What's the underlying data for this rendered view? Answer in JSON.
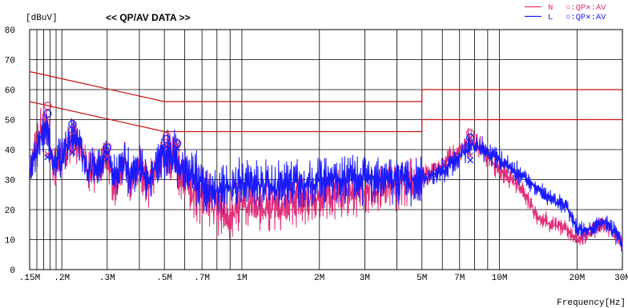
{
  "chart_data": {
    "type": "line",
    "title": "<< QP/AV DATA >>",
    "ylabel": "[dBuV]",
    "xlabel": "Frequency[Hz]",
    "x_scale": "log",
    "xlim_mhz": [
      0.15,
      30
    ],
    "ylim": [
      0,
      80
    ],
    "y_ticks": [
      0,
      10,
      20,
      30,
      40,
      50,
      60,
      70,
      80
    ],
    "x_ticks": [
      {
        "label": ".15M",
        "mhz": 0.15
      },
      {
        "label": ".2M",
        "mhz": 0.2
      },
      {
        "label": ".3M",
        "mhz": 0.3
      },
      {
        "label": ".5M",
        "mhz": 0.5
      },
      {
        "label": ".7M",
        "mhz": 0.7
      },
      {
        "label": "1M",
        "mhz": 1
      },
      {
        "label": "2M",
        "mhz": 2
      },
      {
        "label": "3M",
        "mhz": 3
      },
      {
        "label": "5M",
        "mhz": 5
      },
      {
        "label": "7M",
        "mhz": 7
      },
      {
        "label": "10M",
        "mhz": 10
      },
      {
        "label": "20M",
        "mhz": 20
      },
      {
        "label": "30M",
        "mhz": 30
      }
    ],
    "grid": true,
    "legend": {
      "placement": "top-right",
      "rows": [
        {
          "line": "N",
          "markers": "○:QP✕:AV",
          "color": "#e0307a"
        },
        {
          "line": "L",
          "markers": "○:QP✕:AV",
          "color": "#1a1aff"
        }
      ]
    },
    "limit_lines": [
      {
        "name": "QP limit",
        "color": "#cc1010",
        "points": [
          [
            0.15,
            66
          ],
          [
            0.5,
            56
          ],
          [
            5,
            56
          ],
          [
            5,
            60
          ],
          [
            30,
            60
          ]
        ]
      },
      {
        "name": "AV limit",
        "color": "#cc1010",
        "points": [
          [
            0.15,
            56
          ],
          [
            0.5,
            46
          ],
          [
            5,
            46
          ],
          [
            5,
            50
          ],
          [
            30,
            50
          ]
        ]
      }
    ],
    "series": [
      {
        "key": "N",
        "color": "#e0307a",
        "envelope": [
          [
            0.15,
            37
          ],
          [
            0.165,
            49
          ],
          [
            0.175,
            52
          ],
          [
            0.185,
            35
          ],
          [
            0.2,
            39
          ],
          [
            0.22,
            46
          ],
          [
            0.235,
            44
          ],
          [
            0.25,
            34
          ],
          [
            0.28,
            36
          ],
          [
            0.3,
            41
          ],
          [
            0.32,
            30
          ],
          [
            0.35,
            38
          ],
          [
            0.37,
            31
          ],
          [
            0.4,
            37
          ],
          [
            0.43,
            30
          ],
          [
            0.47,
            36
          ],
          [
            0.5,
            42
          ],
          [
            0.55,
            38
          ],
          [
            0.6,
            32
          ],
          [
            0.7,
            27
          ],
          [
            0.8,
            24
          ],
          [
            0.9,
            22
          ],
          [
            1,
            25
          ],
          [
            1.2,
            23
          ],
          [
            1.5,
            25
          ],
          [
            2,
            27
          ],
          [
            2.5,
            28
          ],
          [
            3,
            29
          ],
          [
            4,
            31
          ],
          [
            5,
            32
          ],
          [
            6,
            36
          ],
          [
            7,
            41
          ],
          [
            7.7,
            45
          ],
          [
            8.5,
            41
          ],
          [
            10,
            35
          ],
          [
            12,
            29
          ],
          [
            14,
            19
          ],
          [
            16,
            16
          ],
          [
            18,
            15
          ],
          [
            20,
            11
          ],
          [
            22,
            13
          ],
          [
            25,
            16
          ],
          [
            28,
            13
          ],
          [
            30,
            10
          ]
        ],
        "qp_markers": [
          [
            0.176,
            54.6
          ],
          [
            0.22,
            46.5
          ],
          [
            0.3,
            41.0
          ],
          [
            0.51,
            44.5
          ],
          [
            0.56,
            42.2
          ],
          [
            7.7,
            45.5
          ]
        ],
        "av_markers": [
          [
            0.176,
            38.5
          ],
          [
            0.22,
            39.6
          ],
          [
            0.3,
            37.6
          ],
          [
            0.51,
            42.0
          ],
          [
            0.56,
            41.5
          ],
          [
            7.7,
            38.0
          ]
        ]
      },
      {
        "key": "L",
        "color": "#1a1aff",
        "envelope": [
          [
            0.15,
            36
          ],
          [
            0.165,
            45
          ],
          [
            0.175,
            50
          ],
          [
            0.185,
            37
          ],
          [
            0.2,
            40
          ],
          [
            0.22,
            47
          ],
          [
            0.235,
            46
          ],
          [
            0.25,
            36
          ],
          [
            0.28,
            37
          ],
          [
            0.3,
            42
          ],
          [
            0.32,
            33
          ],
          [
            0.35,
            40
          ],
          [
            0.37,
            33
          ],
          [
            0.4,
            38
          ],
          [
            0.43,
            32
          ],
          [
            0.47,
            37
          ],
          [
            0.5,
            43
          ],
          [
            0.55,
            40
          ],
          [
            0.6,
            36
          ],
          [
            0.7,
            31
          ],
          [
            0.8,
            30
          ],
          [
            0.9,
            30
          ],
          [
            1,
            31
          ],
          [
            1.2,
            31
          ],
          [
            1.5,
            31
          ],
          [
            2,
            32
          ],
          [
            2.5,
            33
          ],
          [
            3,
            33
          ],
          [
            4,
            33
          ],
          [
            5,
            32
          ],
          [
            6,
            34
          ],
          [
            7,
            39
          ],
          [
            7.7,
            43
          ],
          [
            8.5,
            42
          ],
          [
            10,
            38
          ],
          [
            12,
            33
          ],
          [
            14,
            28
          ],
          [
            16,
            24
          ],
          [
            18,
            23
          ],
          [
            20,
            15
          ],
          [
            22,
            14
          ],
          [
            25,
            17
          ],
          [
            28,
            14
          ],
          [
            30,
            9
          ]
        ],
        "qp_markers": [
          [
            0.176,
            52.0
          ],
          [
            0.22,
            48.5
          ],
          [
            0.3,
            40.5
          ],
          [
            0.51,
            43.5
          ],
          [
            0.56,
            42.0
          ],
          [
            7.7,
            44.0
          ]
        ],
        "av_markers": [
          [
            0.176,
            37.5
          ],
          [
            0.22,
            39.0
          ],
          [
            0.3,
            37.0
          ],
          [
            0.51,
            41.0
          ],
          [
            0.56,
            40.5
          ],
          [
            7.7,
            36.5
          ]
        ]
      }
    ]
  }
}
